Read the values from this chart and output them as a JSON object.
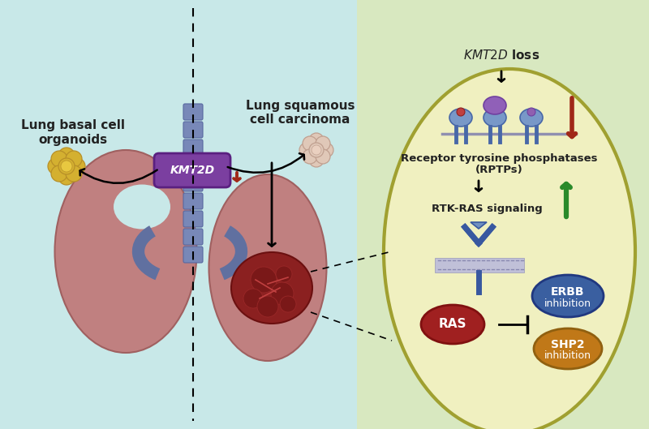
{
  "bg_left_color": "#c8e8e8",
  "bg_right_color": "#d8e8c0",
  "cell_bg_color": "#f0f0c0",
  "cell_border_color": "#a0a030",
  "left_label1": "Lung basal cell",
  "left_label2": "organoids",
  "right_label1": "Lung squamous",
  "right_label2": "cell carcinoma",
  "kmt2d_box_color": "#7b3fa0",
  "kmt2d_text": "KMT2D",
  "kmt2d_loss_text": "KMT2D loss",
  "rtp_text1": "Receptor tyrosine phosphatases",
  "rtp_text2": "(RPTPs)",
  "rtk_ras_text": "RTK-RAS signaling",
  "erbb_text1": "ERBB",
  "erbb_text2": "inhibition",
  "erbb_color": "#3a5fa0",
  "shp2_text1": "SHP2",
  "shp2_text2": "inhibition",
  "shp2_color": "#c07818",
  "ras_text": "RAS",
  "ras_color": "#a02020",
  "arrow_up_color": "#2a8a2a",
  "arrow_red_color": "#a02818",
  "lung_color": "#c08080",
  "lung_edge_color": "#a06060",
  "tumor_color": "#8b2020",
  "bronchi_color": "#6070a0",
  "organoid_color": "#d4b030",
  "organoid2_color": "#e0c8b8"
}
